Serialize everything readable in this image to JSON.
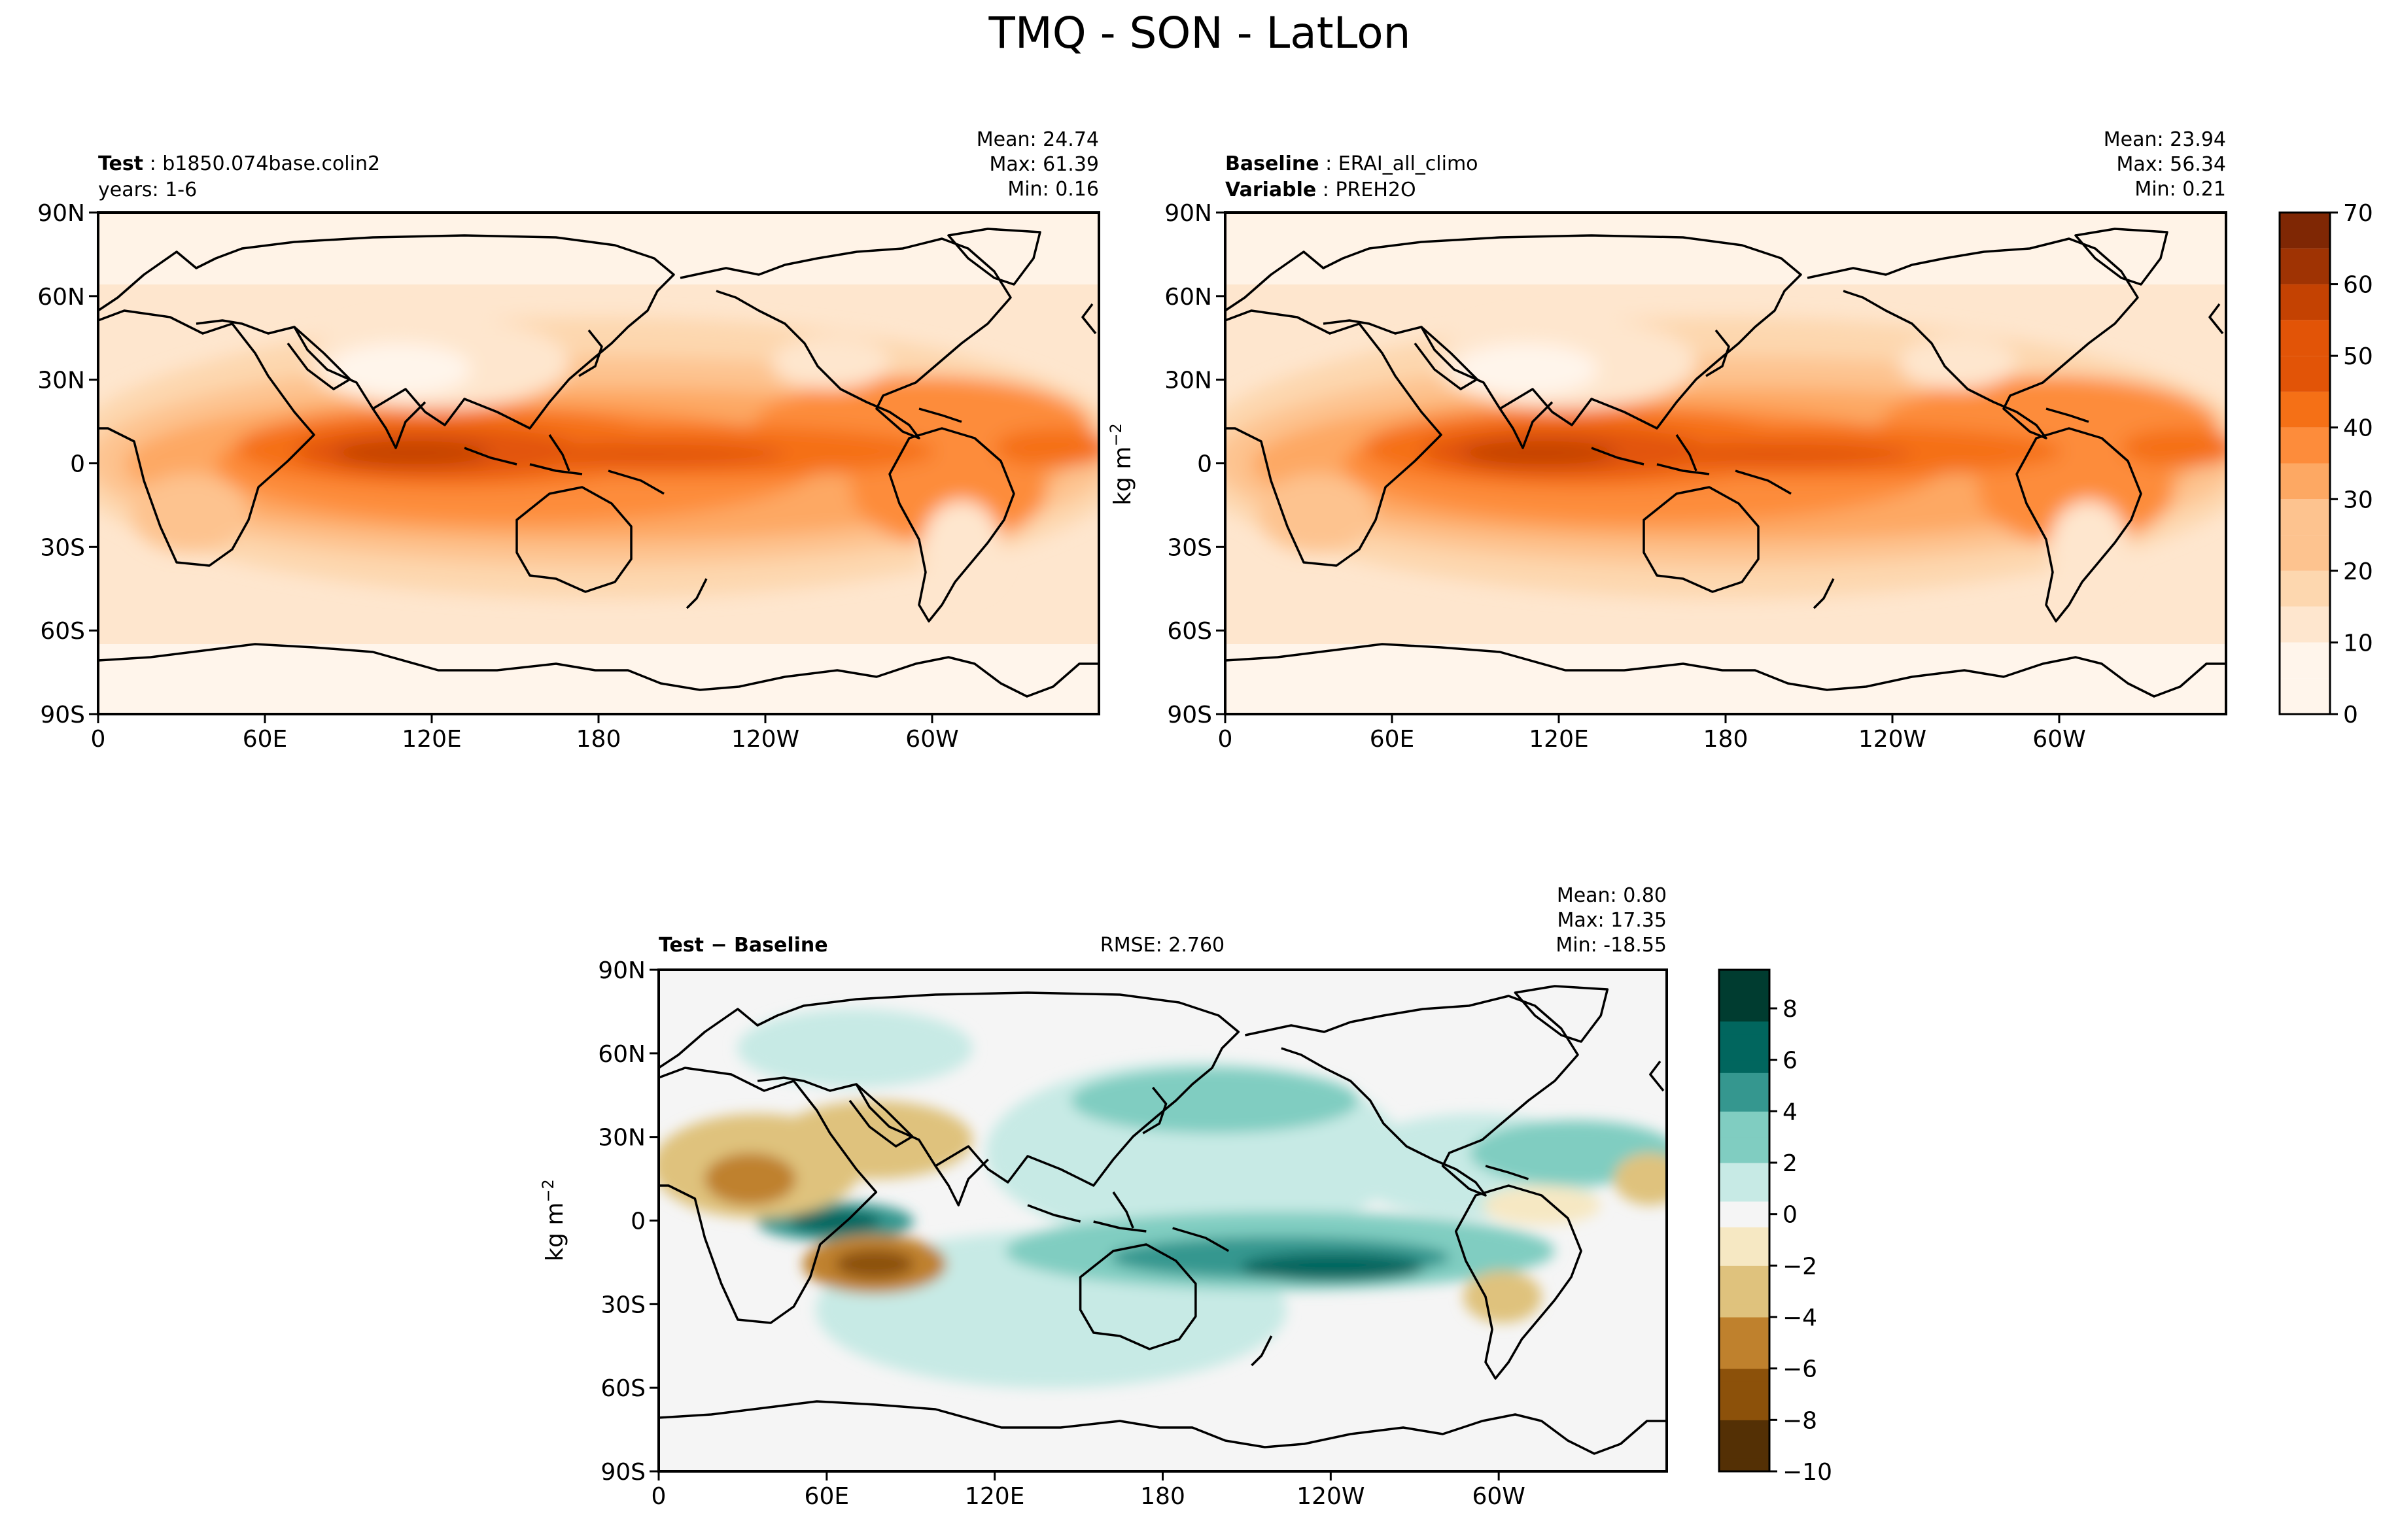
{
  "figure_title": "TMQ - SON - LatLon",
  "panels": {
    "test": {
      "label_bold": "Test",
      "label_rest": "b1850.074base.colin2",
      "line2": "years: 1-6",
      "mean": "Mean: 24.74",
      "max": "Max: 61.39",
      "min": "Min:  0.16"
    },
    "baseline": {
      "label_bold": "Baseline",
      "label_rest": "ERAI_all_climo",
      "line2_bold": "Variable",
      "line2_rest": "PREH2O",
      "mean": "Mean: 23.94",
      "max": "Max: 56.34",
      "min": "Min:  0.21"
    },
    "diff": {
      "label": "Test − Baseline",
      "rmse": "RMSE: 2.760",
      "mean": "Mean:  0.80",
      "max": "Max: 17.35",
      "min": "Min: -18.55"
    }
  },
  "units_label": "kg m",
  "units_exp": "−2",
  "colors": {
    "seq": [
      "#fff5eb",
      "#fee6ce",
      "#fdd7af",
      "#fdc38f",
      "#fda863",
      "#fd8c3b",
      "#f57016",
      "#e25407",
      "#c44202",
      "#9f3303",
      "#7f2704"
    ],
    "div_neg": [
      "#543005",
      "#8c510a",
      "#bf812d",
      "#dfc27d",
      "#f6e8c3"
    ],
    "div_mid": "#f5f5f5",
    "div_pos": [
      "#c7eae5",
      "#80cdc1",
      "#35978f",
      "#01665e",
      "#003c30"
    ]
  },
  "chart_data": [
    {
      "type": "heatmap",
      "title": "Test: b1850.074base.colin2",
      "subtitle": "years: 1-6",
      "stats": {
        "mean": 24.74,
        "max": 61.39,
        "min": 0.16
      },
      "x_ticks": [
        "0",
        "60E",
        "120E",
        "180",
        "120W",
        "60W"
      ],
      "y_ticks": [
        "90N",
        "60N",
        "30N",
        "0",
        "30S",
        "60S",
        "90S"
      ],
      "xlim": [
        0,
        360
      ],
      "ylim": [
        -90,
        90
      ],
      "colorbar": {
        "levels": [
          0,
          5,
          10,
          15,
          20,
          25,
          30,
          35,
          40,
          45,
          50,
          55,
          60,
          65,
          70
        ],
        "ticks": [
          "0",
          "10",
          "20",
          "30",
          "40",
          "50",
          "60",
          "70"
        ],
        "label": "kg m−2"
      }
    },
    {
      "type": "heatmap",
      "title": "Baseline: ERAI_all_climo",
      "subtitle": "Variable: PREH2O",
      "stats": {
        "mean": 23.94,
        "max": 56.34,
        "min": 0.21
      },
      "x_ticks": [
        "0",
        "60E",
        "120E",
        "180",
        "120W",
        "60W"
      ],
      "y_ticks": [
        "90N",
        "60N",
        "30N",
        "0",
        "30S",
        "60S",
        "90S"
      ],
      "xlim": [
        0,
        360
      ],
      "ylim": [
        -90,
        90
      ]
    },
    {
      "type": "heatmap",
      "title": "Test − Baseline",
      "stats": {
        "mean": 0.8,
        "max": 17.35,
        "min": -18.55,
        "rmse": 2.76
      },
      "x_ticks": [
        "0",
        "60E",
        "120E",
        "180",
        "120W",
        "60W"
      ],
      "y_ticks": [
        "90N",
        "60N",
        "30N",
        "0",
        "30S",
        "60S",
        "90S"
      ],
      "xlim": [
        0,
        360
      ],
      "ylim": [
        -90,
        90
      ],
      "colorbar": {
        "levels": [
          -10,
          9.5
        ],
        "ticks": [
          "8",
          "6",
          "4",
          "2",
          "0",
          "−2",
          "−4",
          "−6",
          "−8",
          "−10"
        ],
        "label": "kg m−2"
      }
    }
  ]
}
